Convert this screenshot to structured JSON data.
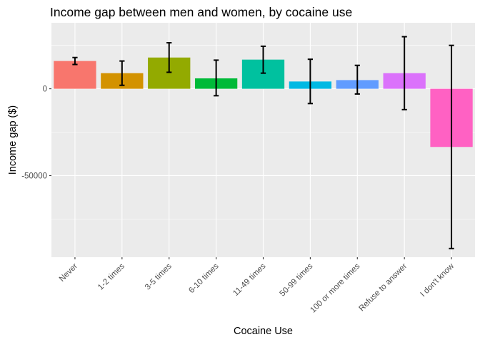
{
  "chart_data": {
    "type": "bar",
    "title": "Income gap between men and women, by cocaine use",
    "xlabel": "Cocaine Use",
    "ylabel": "Income gap ($)",
    "categories": [
      "Never",
      "1-2 times",
      "3-5 times",
      "6-10 times",
      "11-49 times",
      "50-99 times",
      "100 or more times",
      "Refuse to answer",
      "I don't know"
    ],
    "values": [
      16000,
      9000,
      18000,
      6000,
      16800,
      4200,
      5000,
      9000,
      -33500
    ],
    "error_low": [
      14000,
      2000,
      9500,
      -4000,
      9000,
      -8500,
      -3000,
      -12000,
      -92000
    ],
    "error_high": [
      18000,
      16000,
      26500,
      16500,
      24500,
      17000,
      13500,
      30000,
      25000
    ],
    "colors": [
      "#F8766D",
      "#D39200",
      "#93AA00",
      "#00BA38",
      "#00C19F",
      "#00B9E3",
      "#619CFF",
      "#DB72FB",
      "#FF61C3"
    ],
    "ylim": [
      -97000,
      38000
    ],
    "yticks": [
      0,
      -50000
    ],
    "ytick_labels": [
      "0",
      "-50000"
    ],
    "grid": true,
    "legend": "none"
  }
}
